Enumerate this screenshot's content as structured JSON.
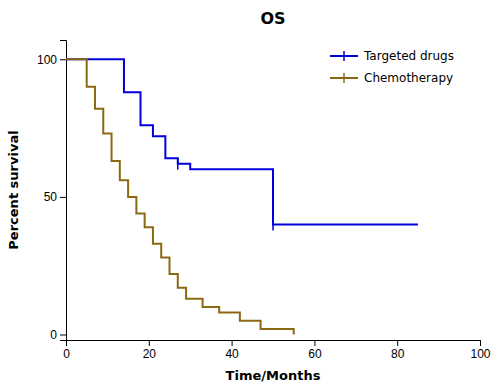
{
  "chart_data": {
    "type": "step",
    "title": "OS",
    "xlabel": "Time/Months",
    "ylabel": "Percent survival",
    "xlim": [
      0,
      100
    ],
    "ylim": [
      -2,
      107
    ],
    "xticks": [
      0,
      20,
      40,
      60,
      80,
      100
    ],
    "yticks": [
      0,
      50,
      100
    ],
    "grid": false,
    "legend": "upper right",
    "series": [
      {
        "name": "Targeted drugs",
        "color": "#0000dd",
        "x": [
          0,
          11,
          14,
          18,
          21,
          24,
          27,
          30,
          36,
          50,
          85
        ],
        "values": [
          100,
          100,
          88,
          76,
          72,
          64,
          62,
          60,
          60,
          40,
          40
        ],
        "censor_x": [
          27,
          50
        ],
        "censor_values": [
          62,
          40
        ]
      },
      {
        "name": "Chemotherapy",
        "color": "#8B6914",
        "x": [
          0,
          5,
          7,
          9,
          11,
          13,
          15,
          17,
          19,
          21,
          23,
          25,
          27,
          29,
          33,
          37,
          42,
          47,
          55
        ],
        "values": [
          100,
          90,
          82,
          73,
          63,
          56,
          50,
          44,
          39,
          33,
          28,
          22,
          17,
          13,
          10,
          8,
          5,
          2,
          0
        ]
      }
    ]
  }
}
